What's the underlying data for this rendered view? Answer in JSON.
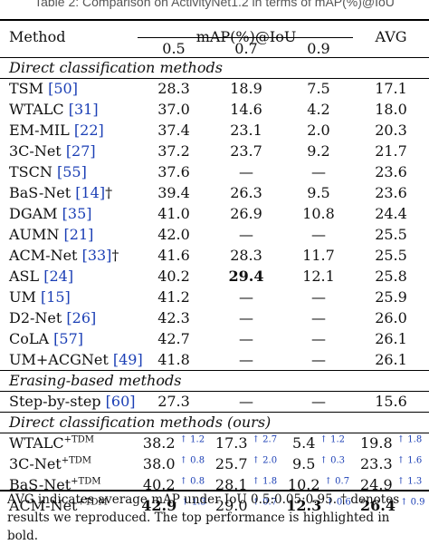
{
  "caption": "Table 2: Comparison on ActivityNet1.2 in terms of mAP(%)@IoU",
  "header": {
    "method": "Method",
    "group": "mAP(%)@IoU",
    "iou": [
      "0.5",
      "0.7",
      "0.9"
    ],
    "avg": "AVG"
  },
  "sections": [
    {
      "title": "Direct classification methods",
      "rows": [
        {
          "name": "TSM",
          "ref": "50",
          "mark": "",
          "v1": "28.3",
          "v2": "18.9",
          "v3": "7.5",
          "avg": "17.1"
        },
        {
          "name": "WTALC",
          "ref": "31",
          "mark": "",
          "v1": "37.0",
          "v2": "14.6",
          "v3": "4.2",
          "avg": "18.0"
        },
        {
          "name": "EM-MIL",
          "ref": "22",
          "mark": "",
          "v1": "37.4",
          "v2": "23.1",
          "v3": "2.0",
          "avg": "20.3"
        },
        {
          "name": "3C-Net",
          "ref": "27",
          "mark": "",
          "v1": "37.2",
          "v2": "23.7",
          "v3": "9.2",
          "avg": "21.7"
        },
        {
          "name": "TSCN",
          "ref": "55",
          "mark": "",
          "v1": "37.6",
          "v2": "—",
          "v3": "—",
          "avg": "23.6"
        },
        {
          "name": "BaS-Net",
          "ref": "14",
          "mark": "†",
          "v1": "39.4",
          "v2": "26.3",
          "v3": "9.5",
          "avg": "23.6"
        },
        {
          "name": "DGAM",
          "ref": "35",
          "mark": "",
          "v1": "41.0",
          "v2": "26.9",
          "v3": "10.8",
          "avg": "24.4"
        },
        {
          "name": "AUMN",
          "ref": "21",
          "mark": "",
          "v1": "42.0",
          "v2": "—",
          "v3": "—",
          "avg": "25.5"
        },
        {
          "name": "ACM-Net",
          "ref": "33",
          "mark": "†",
          "v1": "41.6",
          "v2": "28.3",
          "v3": "11.7",
          "avg": "25.5"
        },
        {
          "name": "ASL",
          "ref": "24",
          "mark": "",
          "v1": "40.2",
          "v2": "29.4",
          "v3": "12.1",
          "avg": "25.8",
          "bold_v2": true
        },
        {
          "name": "UM",
          "ref": "15",
          "mark": "",
          "v1": "41.2",
          "v2": "—",
          "v3": "—",
          "avg": "25.9"
        },
        {
          "name": "D2-Net",
          "ref": "26",
          "mark": "",
          "v1": "42.3",
          "v2": "—",
          "v3": "—",
          "avg": "26.0"
        },
        {
          "name": "CoLA",
          "ref": "57",
          "mark": "",
          "v1": "42.7",
          "v2": "—",
          "v3": "—",
          "avg": "26.1"
        },
        {
          "name": "UM+ACGNet",
          "ref": "49",
          "mark": "",
          "v1": "41.8",
          "v2": "—",
          "v3": "—",
          "avg": "26.1"
        }
      ]
    },
    {
      "title": "Erasing-based methods",
      "rows": [
        {
          "name": "Step-by-step",
          "ref": "60",
          "mark": "",
          "v1": "27.3",
          "v2": "—",
          "v3": "—",
          "avg": "15.6"
        }
      ]
    },
    {
      "title": "Direct classification methods (ours)",
      "tdm_rows": [
        {
          "name": "WTALC",
          "sup": "+TDM",
          "v1": "38.2",
          "d1": "↑ 1.2",
          "v2": "17.3",
          "d2": "↑ 2.7",
          "v3": "5.4",
          "d3": "↑ 1.2",
          "avg": "19.8",
          "davg": "↑ 1.8"
        },
        {
          "name": "3C-Net",
          "sup": "+TDM",
          "v1": "38.0",
          "d1": "↑ 0.8",
          "v2": "25.7",
          "d2": "↑ 2.0",
          "v3": "9.5",
          "d3": "↑ 0.3",
          "avg": "23.3",
          "davg": "↑ 1.6"
        },
        {
          "name": "BaS-Net",
          "sup": "+TDM",
          "v1": "40.2",
          "d1": "↑ 0.8",
          "v2": "28.1",
          "d2": "↑ 1.8",
          "v3": "10.2",
          "d3": "↑ 0.7",
          "avg": "24.9",
          "davg": "↑ 1.3"
        },
        {
          "name": "ACM-Net",
          "sup": "+TDM",
          "v1": "42.9",
          "d1": "↑ 1.3",
          "v2": "29.0",
          "d2": "↑ 0.7",
          "v3": "12.3",
          "d3": "↑ 0.6",
          "avg": "26.4",
          "davg": "↑ 0.9",
          "bold_v1": true,
          "bold_v3": true,
          "bold_avg": true
        }
      ]
    }
  ],
  "footnote": "AVG indicates average mAP under IoU 0.5:0.05:0.95. † denotes results we reproduced. The top performance is highlighted in bold."
}
